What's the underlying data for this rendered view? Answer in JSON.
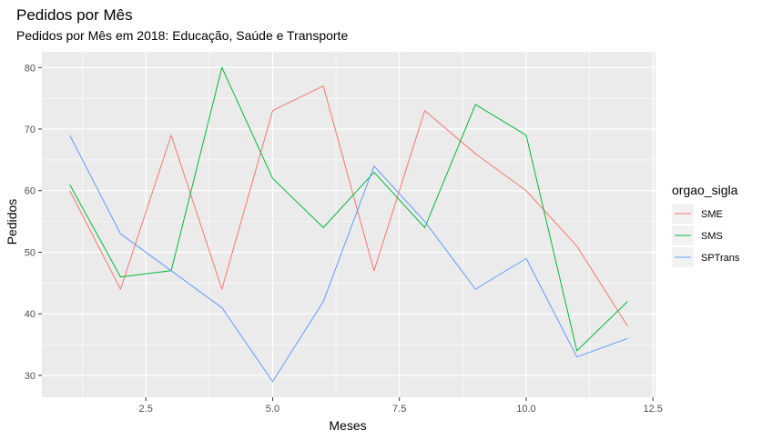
{
  "chart_data": {
    "type": "line",
    "title": "Pedidos por Mês",
    "subtitle": "Pedidos por Mês em 2018: Educação, Saúde e Transporte",
    "xlabel": "Meses",
    "ylabel": "Pedidos",
    "xlim": [
      0.45,
      12.55
    ],
    "ylim": [
      26.45,
      82.55
    ],
    "x_ticks": [
      2.5,
      5.0,
      7.5,
      10.0,
      12.5
    ],
    "x_tick_labels": [
      "2.5",
      "5.0",
      "7.5",
      "10.0",
      "12.5"
    ],
    "y_ticks": [
      30,
      40,
      50,
      60,
      70,
      80
    ],
    "y_tick_labels": [
      "30",
      "40",
      "50",
      "60",
      "70",
      "80"
    ],
    "grid": true,
    "legend_title": "orgao_sigla",
    "legend_position": "right",
    "x": [
      1,
      2,
      3,
      4,
      5,
      6,
      7,
      8,
      9,
      10,
      11,
      12
    ],
    "series": [
      {
        "name": "SME",
        "color": "#F8766D",
        "values": [
          60,
          44,
          69,
          44,
          73,
          77,
          47,
          73,
          66,
          60,
          51,
          38
        ]
      },
      {
        "name": "SMS",
        "color": "#00BA38",
        "values": [
          61,
          46,
          47,
          80,
          62,
          54,
          63,
          54,
          74,
          69,
          34,
          42
        ]
      },
      {
        "name": "SPTrans",
        "color": "#619CFF",
        "values": [
          69,
          53,
          47,
          41,
          29,
          42,
          64,
          55,
          44,
          49,
          33,
          36
        ]
      }
    ]
  }
}
